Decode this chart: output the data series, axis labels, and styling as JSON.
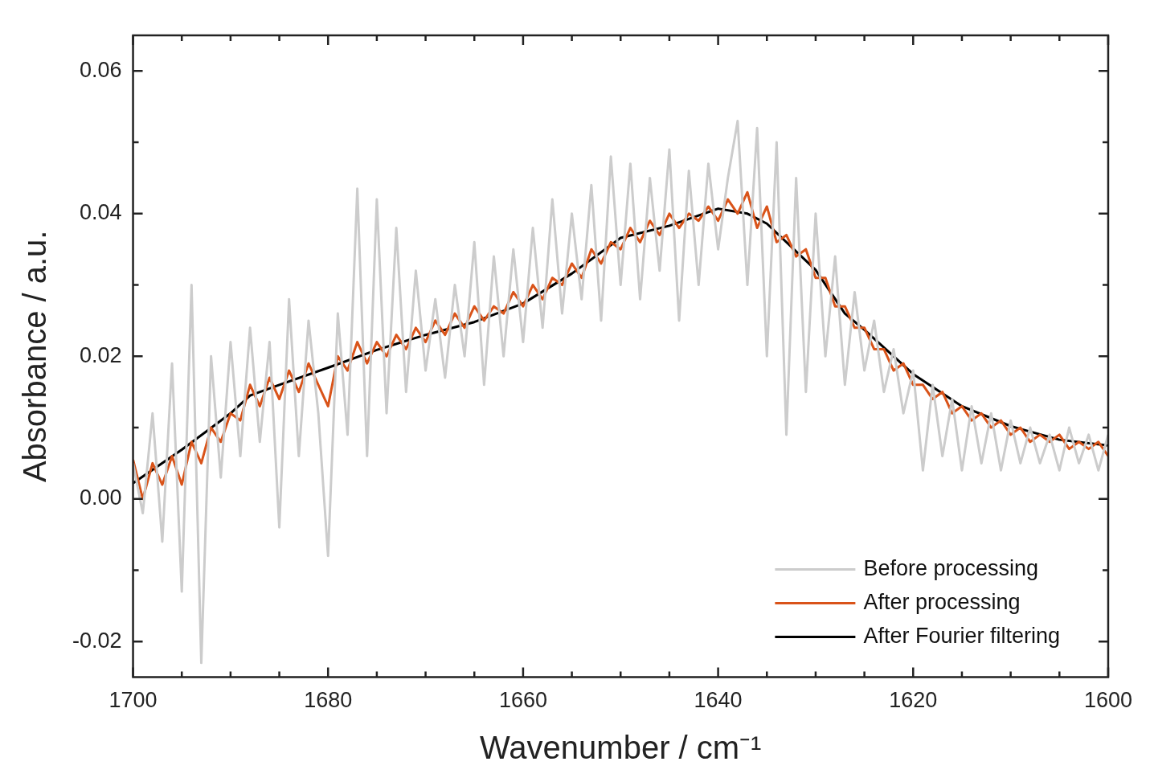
{
  "chart_data": {
    "type": "line",
    "xlabel": "Wavenumber / cm⁻¹",
    "ylabel": "Absorbance / a.u.",
    "xlim": [
      1700,
      1600
    ],
    "ylim": [
      -0.025,
      0.065
    ],
    "xticks": [
      1700,
      {
        "value": 1695,
        "label": null
      },
      {
        "value": 1690,
        "label": null
      },
      {
        "value": 1685,
        "label": null
      },
      1680,
      {
        "value": 1675,
        "label": null
      },
      {
        "value": 1670,
        "label": null
      },
      {
        "value": 1665,
        "label": null
      },
      1660,
      {
        "value": 1655,
        "label": null
      },
      {
        "value": 1650,
        "label": null
      },
      {
        "value": 1645,
        "label": null
      },
      1640,
      {
        "value": 1635,
        "label": null
      },
      {
        "value": 1630,
        "label": null
      },
      {
        "value": 1625,
        "label": null
      },
      1620,
      {
        "value": 1615,
        "label": null
      },
      {
        "value": 1610,
        "label": null
      },
      {
        "value": 1605,
        "label": null
      },
      1600
    ],
    "yticks": [
      {
        "value": -0.02,
        "label": "-0.02"
      },
      {
        "value": -0.01,
        "label": null
      },
      {
        "value": 0,
        "label": "0.00"
      },
      {
        "value": 0.01,
        "label": null
      },
      0.02,
      {
        "value": 0.03,
        "label": null
      },
      0.04,
      {
        "value": 0.05,
        "label": null
      },
      0.06
    ],
    "grid": false,
    "legend": "bottom right",
    "marker": "none",
    "line_style": "solid",
    "x": [
      1700,
      1699,
      1698,
      1697,
      1696,
      1695,
      1694,
      1693,
      1692,
      1691,
      1690,
      1689,
      1688,
      1687,
      1686,
      1685,
      1684,
      1683,
      1682,
      1681,
      1680,
      1679,
      1678,
      1677,
      1676,
      1675,
      1674,
      1673,
      1672,
      1671,
      1670,
      1669,
      1668,
      1667,
      1666,
      1665,
      1664,
      1663,
      1662,
      1661,
      1660,
      1659,
      1658,
      1657,
      1656,
      1655,
      1654,
      1653,
      1652,
      1651,
      1650,
      1649,
      1648,
      1647,
      1646,
      1645,
      1644,
      1643,
      1642,
      1641,
      1640,
      1639,
      1638,
      1637,
      1636,
      1635,
      1634,
      1633,
      1632,
      1631,
      1630,
      1629,
      1628,
      1627,
      1626,
      1625,
      1624,
      1623,
      1622,
      1621,
      1620,
      1619,
      1618,
      1617,
      1616,
      1615,
      1614,
      1613,
      1612,
      1611,
      1610,
      1609,
      1608,
      1607,
      1606,
      1605,
      1604,
      1603,
      1602,
      1601,
      1600
    ],
    "series": [
      {
        "name": "Before processing",
        "color": "#cccccc",
        "values": [
          0.005,
          -0.002,
          0.012,
          -0.006,
          0.019,
          -0.013,
          0.03,
          -0.023,
          0.02,
          0.003,
          0.022,
          0.006,
          0.024,
          0.008,
          0.022,
          -0.004,
          0.028,
          0.006,
          0.025,
          0.012,
          -0.008,
          0.026,
          0.009,
          0.0435,
          0.006,
          0.042,
          0.012,
          0.038,
          0.015,
          0.032,
          0.018,
          0.028,
          0.017,
          0.03,
          0.02,
          0.036,
          0.016,
          0.034,
          0.02,
          0.035,
          0.022,
          0.038,
          0.024,
          0.042,
          0.026,
          0.04,
          0.028,
          0.044,
          0.025,
          0.048,
          0.03,
          0.047,
          0.028,
          0.045,
          0.032,
          0.049,
          0.025,
          0.046,
          0.03,
          0.047,
          0.035,
          0.045,
          0.053,
          0.03,
          0.052,
          0.02,
          0.05,
          0.009,
          0.045,
          0.015,
          0.04,
          0.02,
          0.034,
          0.016,
          0.029,
          0.018,
          0.025,
          0.015,
          0.021,
          0.012,
          0.018,
          0.004,
          0.016,
          0.006,
          0.014,
          0.004,
          0.013,
          0.005,
          0.012,
          0.004,
          0.011,
          0.005,
          0.01,
          0.005,
          0.009,
          0.004,
          0.01,
          0.005,
          0.009,
          0.004,
          0.009
        ]
      },
      {
        "name": "After processing",
        "color": "#d95319",
        "values": [
          0.0055,
          0.0,
          0.005,
          0.002,
          0.006,
          0.002,
          0.008,
          0.005,
          0.01,
          0.008,
          0.012,
          0.011,
          0.016,
          0.013,
          0.017,
          0.014,
          0.018,
          0.015,
          0.019,
          0.016,
          0.013,
          0.02,
          0.018,
          0.022,
          0.019,
          0.022,
          0.02,
          0.023,
          0.021,
          0.024,
          0.022,
          0.025,
          0.023,
          0.026,
          0.024,
          0.027,
          0.025,
          0.027,
          0.026,
          0.029,
          0.027,
          0.03,
          0.028,
          0.031,
          0.03,
          0.033,
          0.031,
          0.035,
          0.033,
          0.036,
          0.035,
          0.038,
          0.036,
          0.039,
          0.037,
          0.04,
          0.038,
          0.04,
          0.039,
          0.041,
          0.039,
          0.042,
          0.04,
          0.043,
          0.038,
          0.041,
          0.036,
          0.037,
          0.034,
          0.035,
          0.031,
          0.031,
          0.027,
          0.027,
          0.024,
          0.024,
          0.021,
          0.021,
          0.018,
          0.019,
          0.016,
          0.016,
          0.014,
          0.015,
          0.012,
          0.013,
          0.011,
          0.012,
          0.01,
          0.011,
          0.009,
          0.01,
          0.008,
          0.009,
          0.008,
          0.009,
          0.007,
          0.008,
          0.007,
          0.008,
          0.006
        ]
      },
      {
        "name": "After Fourier filtering",
        "color": "#000000",
        "x": [
          1700,
          1695,
          1690,
          1688,
          1685,
          1680,
          1675,
          1670,
          1665,
          1660,
          1655,
          1650,
          1645,
          1640,
          1637,
          1635,
          1630,
          1627,
          1625,
          1620,
          1615,
          1610,
          1605,
          1600
        ],
        "values": [
          0.0022,
          0.0069,
          0.012,
          0.0145,
          0.016,
          0.0184,
          0.0209,
          0.023,
          0.0248,
          0.0274,
          0.0316,
          0.0366,
          0.0383,
          0.0407,
          0.04,
          0.0386,
          0.0321,
          0.026,
          0.0237,
          0.0175,
          0.013,
          0.0102,
          0.0083,
          0.0075
        ]
      }
    ]
  }
}
